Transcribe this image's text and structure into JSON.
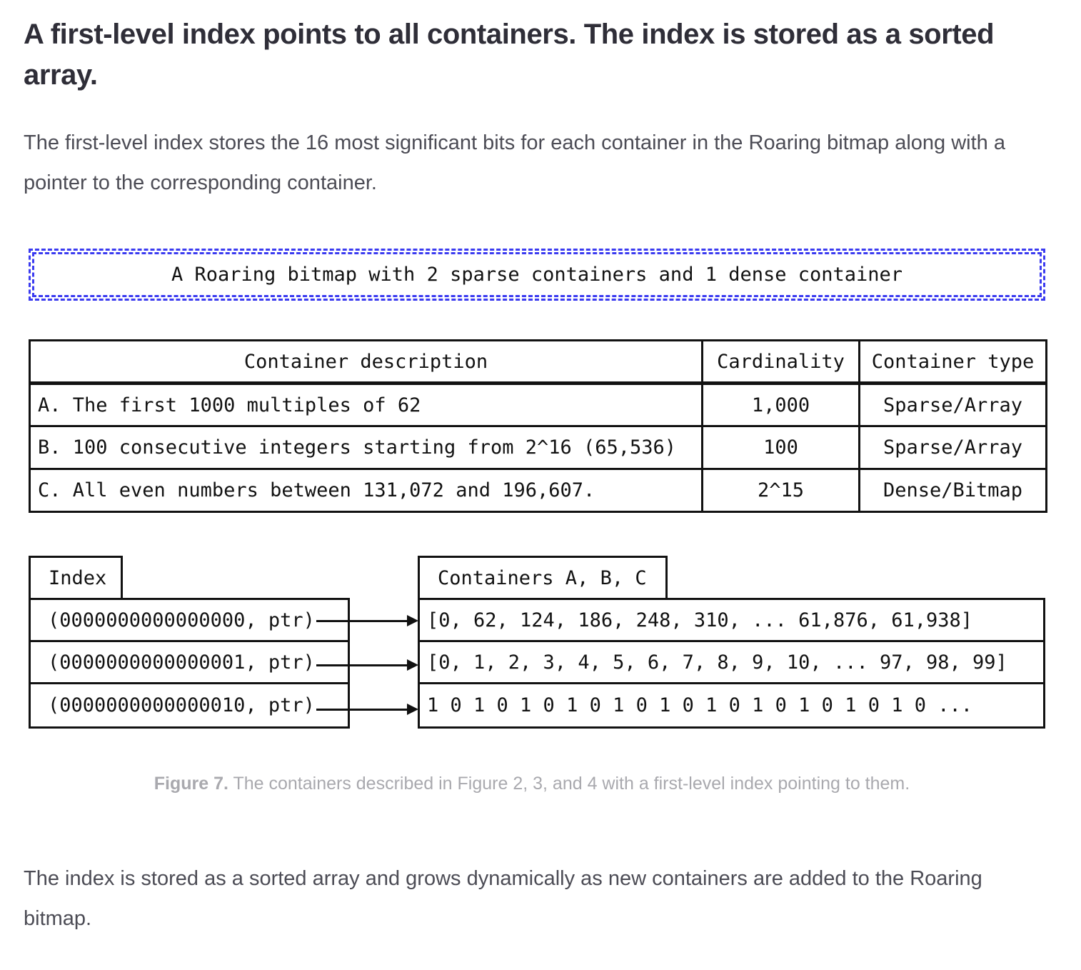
{
  "page": {
    "title": "A first-level index points to all containers. The index is stored as a sorted array.",
    "intro": "The first-level index stores the 16 most significant bits for each container in the Roaring bitmap along with a pointer to the corresponding container.",
    "closing": "The index is stored as a sorted array and grows dynamically as new containers are added to the Roaring bitmap."
  },
  "figure": {
    "accent_blue": "#3b3bf0",
    "banner": "A Roaring bitmap with 2 sparse containers and 1 dense container",
    "table": {
      "headers": [
        "Container description",
        "Cardinality",
        "Container type"
      ],
      "rows": [
        [
          "A. The first 1000 multiples of 62",
          "1,000",
          "Sparse/Array"
        ],
        [
          "B. 100 consecutive integers starting from 2^16 (65,536)",
          "100",
          "Sparse/Array"
        ],
        [
          "C. All even numbers between 131,072 and 196,607.",
          "2^15",
          "Dense/Bitmap"
        ]
      ]
    },
    "index_label": "Index",
    "containers_label": "Containers A, B, C",
    "index_entries": [
      "(0000000000000000, ptr)",
      "(0000000000000001, ptr)",
      "(0000000000000010, ptr)"
    ],
    "container_entries": [
      "[0, 62, 124, 186, 248, 310, ... 61,876, 61,938]",
      "[0, 1, 2, 3, 4, 5, 6, 7, 8, 9, 10, ... 97, 98, 99]",
      "1 0 1 0 1 0 1 0 1 0 1 0 1 0 1 0 1 0 1 0 1 0 ..."
    ],
    "caption_label": "Figure 7.",
    "caption_text": " The containers described in Figure 2, 3, and 4 with a first-level index pointing to them."
  }
}
